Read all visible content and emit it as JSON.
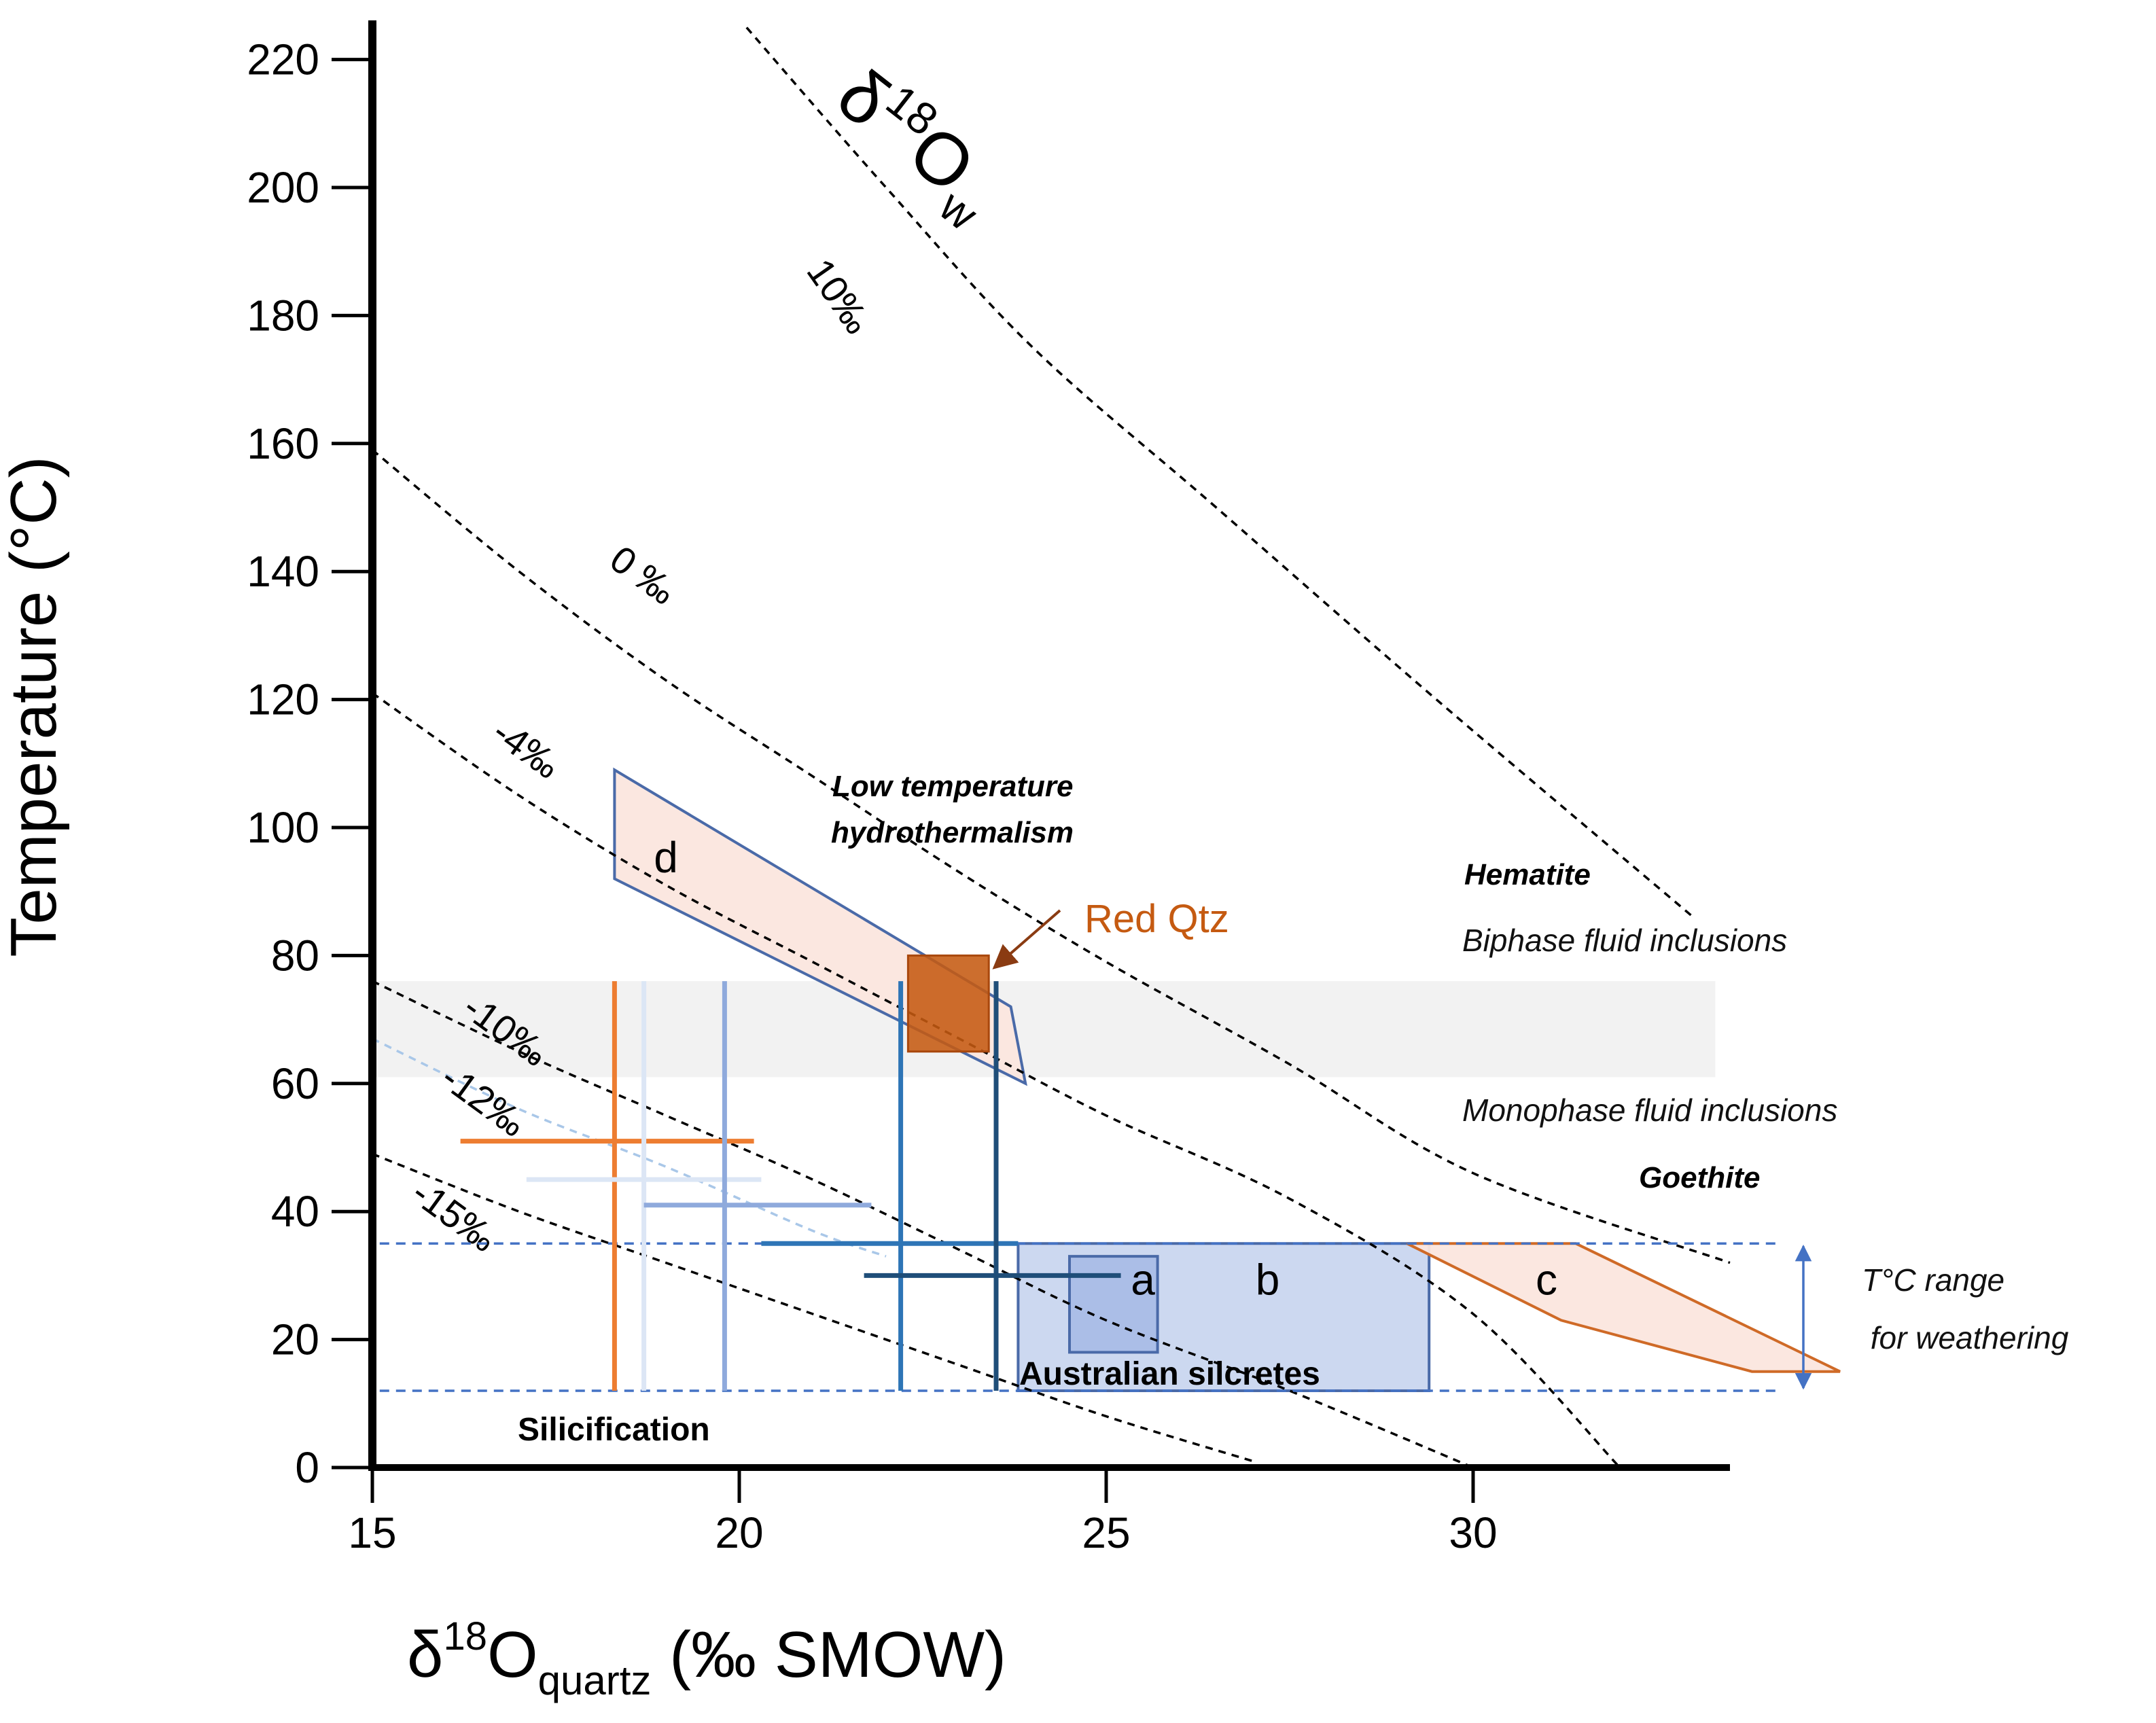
{
  "chart_data": {
    "type": "line",
    "title": "",
    "xlabel_parts": {
      "base": "δ",
      "sup": "18",
      "main": "O",
      "sub": "quartz",
      "tail": " (‰ SMOW)"
    },
    "ylabel": "Temperature (°C)",
    "xlim": [
      15,
      33.5
    ],
    "ylim": [
      0,
      225
    ],
    "xticks": [
      15,
      20,
      25,
      30
    ],
    "yticks": [
      0,
      20,
      40,
      60,
      80,
      100,
      120,
      140,
      160,
      180,
      200,
      220
    ],
    "isotope_title": {
      "base": "δ",
      "sup": "18",
      "main": "O",
      "sub": "w"
    },
    "isopleths": [
      {
        "name": "10‰",
        "label": "10‰",
        "points": [
          [
            20.1,
            225
          ],
          [
            22.0,
            200
          ],
          [
            24.0,
            175
          ],
          [
            26.5,
            150
          ],
          [
            29.5,
            120
          ],
          [
            33.0,
            86
          ]
        ]
      },
      {
        "name": "0 ‰",
        "label": "0 ‰",
        "points": [
          [
            15.0,
            159
          ],
          [
            17.0,
            140
          ],
          [
            19.0,
            123
          ],
          [
            21.0,
            108
          ],
          [
            23.0,
            93
          ],
          [
            25.0,
            79
          ],
          [
            27.5,
            63
          ],
          [
            30.0,
            46
          ],
          [
            33.5,
            32
          ]
        ]
      },
      {
        "name": "-4‰",
        "label": "-4‰",
        "points": [
          [
            15.0,
            121
          ],
          [
            17.0,
            105
          ],
          [
            19.0,
            91
          ],
          [
            21.0,
            79
          ],
          [
            23.0,
            67
          ],
          [
            25.0,
            55
          ],
          [
            27.5,
            42
          ],
          [
            30.0,
            24
          ],
          [
            32.0,
            0
          ]
        ]
      },
      {
        "name": "-10‰",
        "label": "-10‰",
        "points": [
          [
            15.0,
            76
          ],
          [
            17.0,
            65
          ],
          [
            19.0,
            55
          ],
          [
            21.0,
            45
          ],
          [
            23.0,
            34
          ],
          [
            25.0,
            23
          ],
          [
            27.5,
            12
          ],
          [
            30.0,
            0
          ]
        ]
      },
      {
        "name": "-12‰",
        "label": "-12‰",
        "color": "#a9c7e8",
        "points": [
          [
            15.0,
            67
          ],
          [
            17.0,
            56
          ],
          [
            19.0,
            47
          ],
          [
            21.0,
            37
          ],
          [
            22.0,
            33
          ]
        ]
      },
      {
        "name": "-15‰",
        "label": "-15‰",
        "points": [
          [
            15.0,
            49
          ],
          [
            17.0,
            40
          ],
          [
            19.0,
            32
          ],
          [
            21.0,
            24
          ],
          [
            23.0,
            16
          ],
          [
            25.0,
            8
          ],
          [
            27.0,
            1
          ]
        ]
      }
    ],
    "regions": [
      {
        "name": "d",
        "label": "d",
        "fill": "#fbe6de",
        "stroke": "#4a6aa8",
        "points": [
          [
            18.3,
            109
          ],
          [
            18.3,
            92
          ],
          [
            23.9,
            60
          ],
          [
            23.7,
            72
          ]
        ]
      },
      {
        "name": "b",
        "label": "b",
        "fill": "#c9d6ef",
        "stroke": "#4a6aa8",
        "points": [
          [
            23.8,
            35
          ],
          [
            29.4,
            35
          ],
          [
            29.4,
            12
          ],
          [
            23.8,
            12
          ]
        ]
      },
      {
        "name": "a",
        "label": "a",
        "fill": "#a9bde6",
        "stroke": "#4a6aa8",
        "points": [
          [
            24.5,
            33
          ],
          [
            25.7,
            33
          ],
          [
            25.7,
            18
          ],
          [
            24.5,
            18
          ]
        ]
      },
      {
        "name": "c",
        "label": "c",
        "fill": "#fbe6de",
        "stroke": "#cf6a27",
        "points": [
          [
            29.1,
            35
          ],
          [
            31.4,
            35
          ],
          [
            35.0,
            15
          ],
          [
            33.8,
            15
          ],
          [
            31.2,
            23
          ]
        ]
      }
    ],
    "red_qtz": {
      "label": "Red Qtz",
      "color": "#c55a11",
      "x": [
        22.3,
        23.4
      ],
      "y": [
        65,
        80
      ]
    },
    "fluid_band": {
      "y": [
        61,
        76
      ],
      "x": [
        15,
        33.3
      ],
      "color": "#f2f2f2"
    },
    "weathering_range": {
      "label_line1": "T°C range",
      "label_line2": " for weathering",
      "y": [
        12,
        35
      ],
      "color": "#4472c4"
    },
    "error_crosses": [
      {
        "name": "orange",
        "color": "#ed7d31",
        "x": 18.3,
        "y": 51,
        "xrange": [
          16.2,
          20.2
        ],
        "yrange": [
          12,
          76
        ]
      },
      {
        "name": "pale-blue-1",
        "color": "#dce6f5",
        "x": 18.7,
        "y": 45,
        "xrange": [
          17.1,
          20.3
        ],
        "yrange": [
          12,
          76
        ]
      },
      {
        "name": "light-blue",
        "color": "#8faadc",
        "x": 19.8,
        "y": 41,
        "xrange": [
          18.7,
          21.8
        ],
        "yrange": [
          12,
          76
        ]
      },
      {
        "name": "mid-blue",
        "color": "#2e75b6",
        "x": 22.2,
        "y": 35,
        "xrange": [
          20.3,
          23.8
        ],
        "yrange": [
          12,
          76
        ]
      },
      {
        "name": "dark-blue",
        "color": "#1f4e79",
        "x": 23.5,
        "y": 30,
        "xrange": [
          21.7,
          25.2
        ],
        "yrange": [
          12,
          76
        ]
      }
    ],
    "annotations": {
      "low_temp_line1": "Low temperature",
      "low_temp_line2": "hydrothermalism",
      "hematite": "Hematite",
      "biphase": "Biphase fluid inclusions",
      "monophase": "Monophase fluid inclusions",
      "goethite": "Goethite",
      "australian_silcretes": "Australian silcretes",
      "silicification": "Silicification"
    }
  }
}
